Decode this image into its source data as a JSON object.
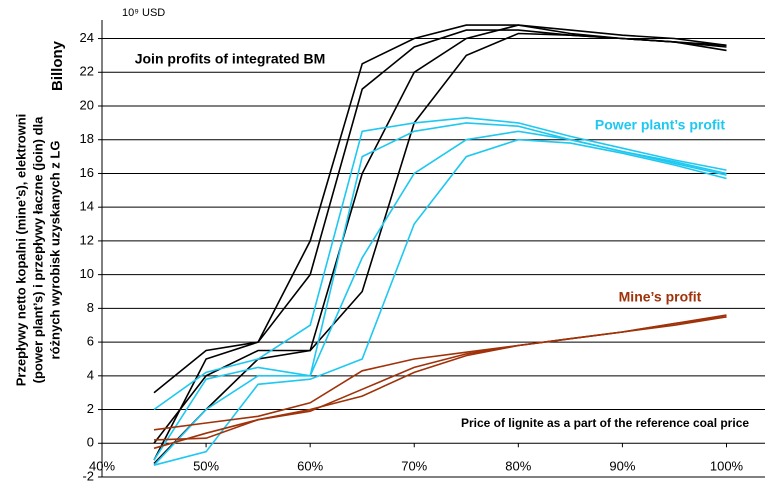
{
  "chart_data": {
    "type": "line",
    "unit_label": "10⁹ USD",
    "axis_label_secondary": "Billony",
    "y_axis_label": [
      "Przepływy netto kopalni (mine’s), elektrowni",
      "(power plant’s) i przepływy łaczne (join) dla",
      "różnych wyrobisk uzyskanych z LG"
    ],
    "x_axis_label": "Price of lignite as a part of the reference coal price",
    "x": [
      45,
      50,
      55,
      60,
      65,
      70,
      75,
      80,
      85,
      90,
      95,
      100
    ],
    "xlim": [
      40,
      103.7
    ],
    "xticks": [
      {
        "value": 40,
        "label": "40%"
      },
      {
        "value": 50,
        "label": "50%"
      },
      {
        "value": 60,
        "label": "60%"
      },
      {
        "value": 70,
        "label": "70%"
      },
      {
        "value": 80,
        "label": "80%"
      },
      {
        "value": 90,
        "label": "90%"
      },
      {
        "value": 100,
        "label": "100%"
      }
    ],
    "ylim": [
      -2,
      25.1
    ],
    "yticks": [
      -2,
      0,
      2,
      4,
      6,
      8,
      10,
      12,
      14,
      16,
      18,
      20,
      22,
      24
    ],
    "grid": true,
    "series": [
      {
        "name": "Join profits of integrated BM",
        "color": "#000000",
        "lines": [
          [
            3,
            5.5,
            6,
            12,
            22.5,
            24,
            24.8,
            24.8,
            24.3,
            24,
            23.8,
            23.5
          ],
          [
            -1,
            5,
            6,
            10,
            21,
            23.5,
            24.5,
            24.5,
            24.2,
            24,
            23.8,
            23.6
          ],
          [
            0,
            4,
            5.5,
            5.5,
            16,
            22,
            24,
            24.8,
            24.5,
            24.2,
            24,
            23.6
          ],
          [
            -1.2,
            2,
            5,
            5.5,
            9,
            19,
            23,
            24.3,
            24.2,
            24,
            23.8,
            23.3
          ]
        ]
      },
      {
        "name": "Power plant’s profit",
        "color": "#1ec8f0",
        "lines": [
          [
            2,
            4.2,
            5,
            7,
            18.5,
            19,
            19.3,
            19,
            18.2,
            17.5,
            16.8,
            16.2
          ],
          [
            -1,
            3.8,
            4.5,
            4,
            17,
            18.5,
            19,
            18.8,
            18,
            17.3,
            16.7,
            16
          ],
          [
            -1.3,
            2,
            4,
            4,
            11,
            16,
            18,
            18.5,
            18,
            17.3,
            16.6,
            15.9
          ],
          [
            -1.3,
            -0.5,
            3.5,
            3.8,
            5,
            13,
            17,
            18,
            17.8,
            17.2,
            16.5,
            15.7
          ]
        ]
      },
      {
        "name": "Mine’s profit",
        "color": "#a0320a",
        "lines": [
          [
            0.8,
            1.2,
            1.6,
            2.4,
            4.3,
            5,
            5.4,
            5.8,
            6.2,
            6.6,
            7.1,
            7.6
          ],
          [
            -0.3,
            0.6,
            1.4,
            1.9,
            3.2,
            4.5,
            5.3,
            5.8,
            6.2,
            6.6,
            7.1,
            7.5
          ],
          [
            0.2,
            0.3,
            1.4,
            2,
            2.8,
            4.2,
            5.2,
            5.8,
            6.2,
            6.6,
            7.0,
            7.5
          ]
        ]
      }
    ]
  }
}
